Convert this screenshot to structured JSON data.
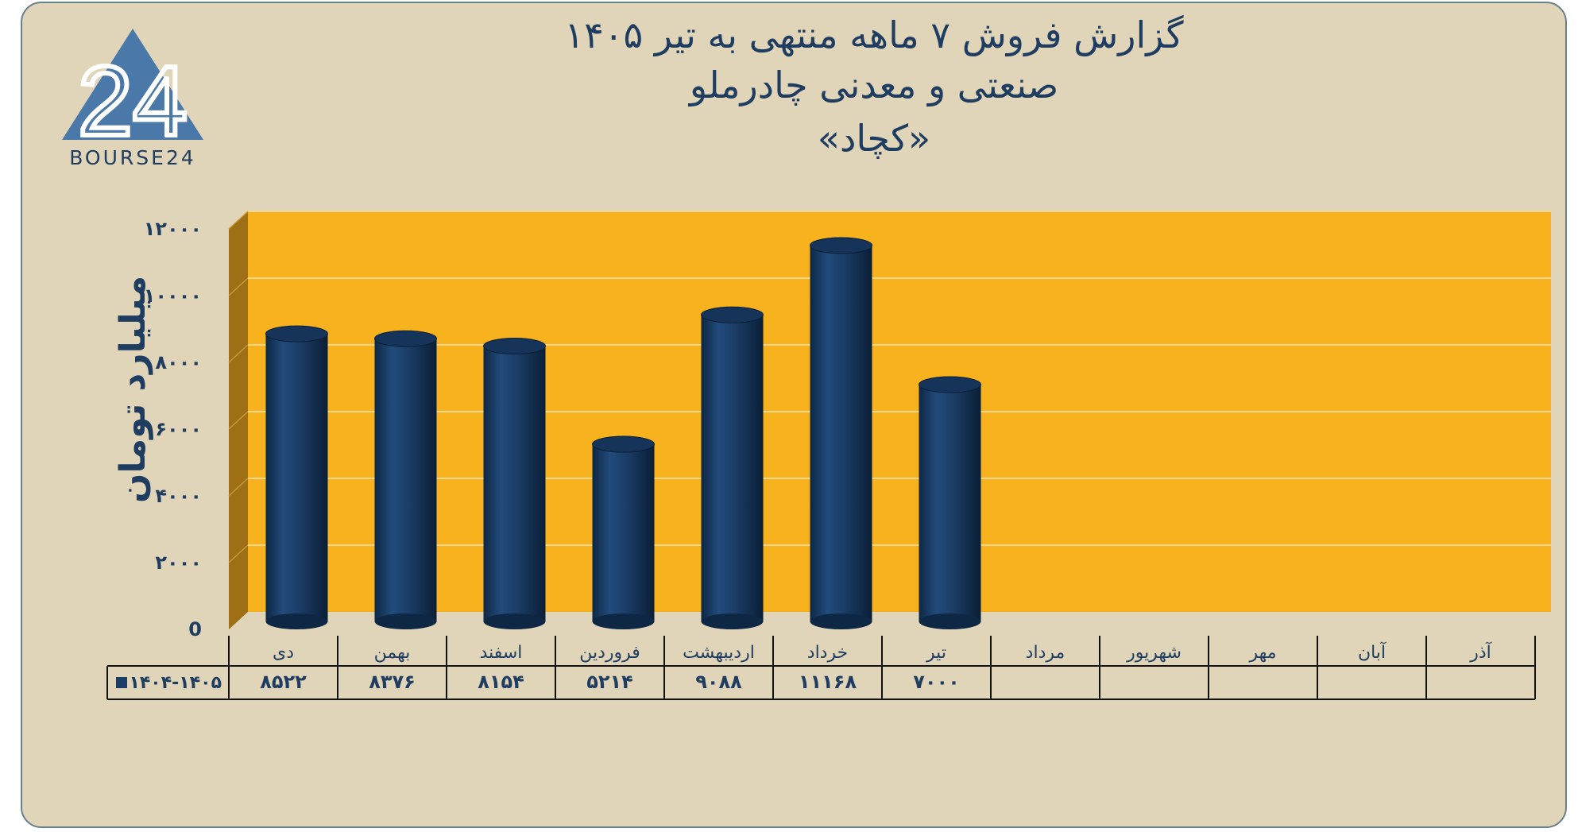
{
  "logo": {
    "mark": "24",
    "text": "BOURSE24",
    "color": "#4a78a8"
  },
  "chart_data": {
    "type": "bar",
    "title": "گزارش  فروش ۷ ماهه منتهی به تیر ۱۴۰۵",
    "subtitle": "صنعتی و معدنی چادرملو",
    "subtitle2": "«کچاد»",
    "xlabel": "",
    "ylabel": "میلیارد تومان",
    "ylim": [
      0,
      12000
    ],
    "yticks": [
      0,
      2000,
      4000,
      6000,
      8000,
      10000,
      12000
    ],
    "ytick_labels": [
      "0",
      "۲۰۰۰",
      "۴۰۰۰",
      "۶۰۰۰",
      "۸۰۰۰",
      "۱۰۰۰۰",
      "۱۲۰۰۰"
    ],
    "grid": true,
    "categories": [
      "دی",
      "بهمن",
      "اسفند",
      "فروردین",
      "اردیبهشت",
      "خرداد",
      "تیر",
      "مرداد",
      "شهریور",
      "مهر",
      "آبان",
      "آذر"
    ],
    "series": [
      {
        "name": "۱۴۰۴-۱۴۰۵",
        "values": [
          8522,
          8376,
          8154,
          5214,
          9088,
          11168,
          7000,
          null,
          null,
          null,
          null,
          null
        ],
        "value_labels": [
          "۸۵۲۲",
          "۸۳۷۶",
          "۸۱۵۴",
          "۵۲۱۴",
          "۹۰۸۸",
          "۱۱۱۶۸",
          "۷۰۰۰",
          "",
          "",
          "",
          "",
          ""
        ],
        "color": "#1b3d66"
      }
    ],
    "legend": "data-table",
    "colors": {
      "plot_background": "#f8b21e",
      "plot_wall": "#9e6f14",
      "page_background": "#e0d5b8",
      "text": "#1f3c61"
    }
  }
}
